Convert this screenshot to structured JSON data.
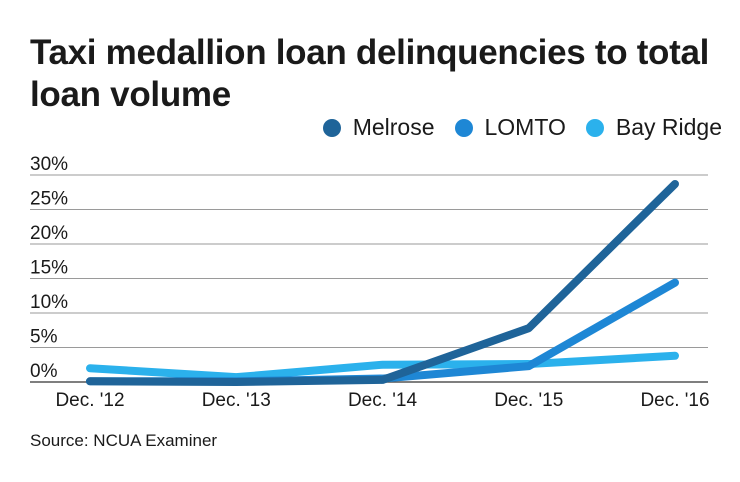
{
  "chart_data": {
    "type": "line",
    "title": "Taxi medallion loan delinquencies to total loan volume",
    "categories": [
      "Dec. '12",
      "Dec. '13",
      "Dec. '14",
      "Dec. '15",
      "Dec. '16"
    ],
    "y_ticks": [
      "0%",
      "5%",
      "10%",
      "15%",
      "20%",
      "25%",
      "30%"
    ],
    "ylim": [
      0,
      30
    ],
    "grid": true,
    "legend_position": "top-right",
    "series": [
      {
        "name": "Melrose",
        "color": "#1f6499",
        "values": [
          0.1,
          0.0,
          0.3,
          7.8,
          28.7
        ]
      },
      {
        "name": "LOMTO",
        "color": "#1e87d5",
        "values": [
          0.1,
          0.1,
          0.5,
          2.3,
          14.4
        ]
      },
      {
        "name": "Bay Ridge",
        "color": "#2bb1ec",
        "values": [
          2.0,
          0.7,
          2.5,
          2.6,
          3.8
        ]
      }
    ],
    "source": "Source: NCUA Examiner"
  }
}
